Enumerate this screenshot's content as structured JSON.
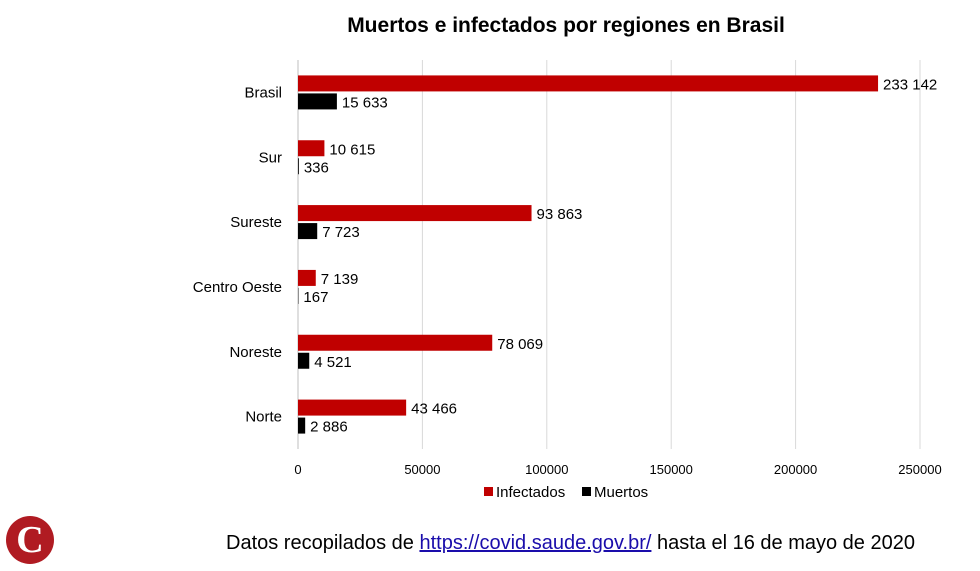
{
  "chart_data": {
    "type": "bar",
    "orientation": "horizontal",
    "title": "Muertos e infectados por regiones en Brasil",
    "categories": [
      "Brasil",
      "Sur",
      "Sureste",
      "Centro Oeste",
      "Noreste",
      "Norte"
    ],
    "series": [
      {
        "name": "Infectados",
        "color": "#c00000",
        "values": [
          233142,
          10615,
          93863,
          7139,
          78069,
          43466
        ],
        "labels": [
          "233 142",
          "10 615",
          "93 863",
          "7 139",
          "78 069",
          "43 466"
        ]
      },
      {
        "name": "Muertos",
        "color": "#000000",
        "values": [
          15633,
          336,
          7723,
          167,
          4521,
          2886
        ],
        "labels": [
          "15 633",
          "336",
          "7 723",
          "167",
          "4 521",
          "2 886"
        ]
      }
    ],
    "xlim": [
      0,
      250000
    ],
    "xticks": [
      0,
      50000,
      100000,
      150000,
      200000,
      250000
    ],
    "xtick_labels": [
      "0",
      "50000",
      "100000",
      "150000",
      "200000",
      "250000"
    ],
    "grid": true,
    "legend": "bottom"
  },
  "footer": {
    "prefix": "Datos recopilados de ",
    "link": "https://covid.saude.gov.br/",
    "suffix": " hasta el 16 de mayo de 2020"
  },
  "logo": {
    "letter": "C",
    "color": "#b01b22"
  }
}
